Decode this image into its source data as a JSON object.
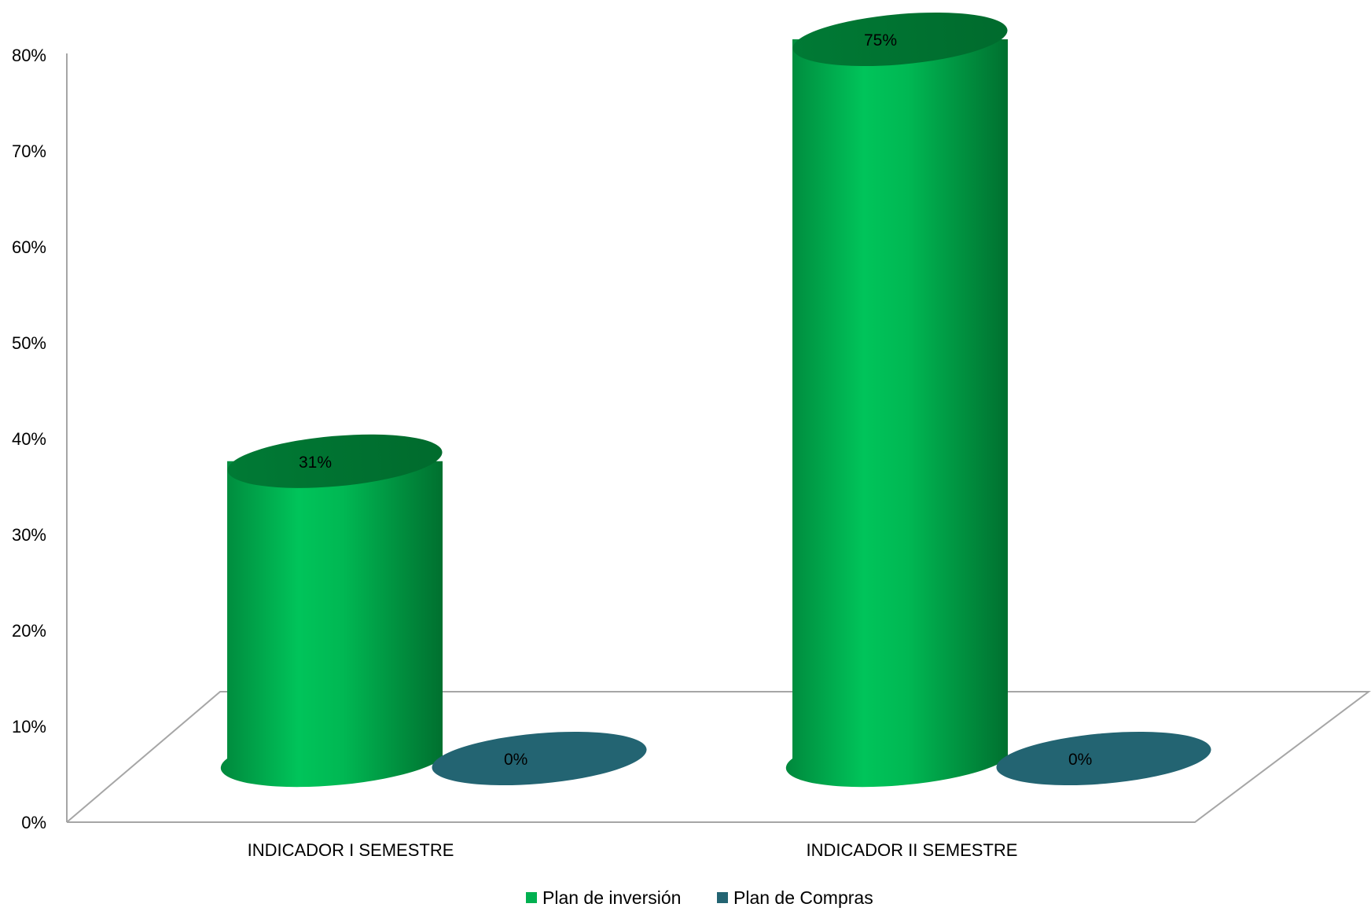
{
  "chart_data": {
    "type": "bar",
    "style": "3d-cylinder",
    "title": "",
    "xlabel": "",
    "ylabel": "",
    "ylim": [
      0,
      80
    ],
    "y_ticks": [
      "0%",
      "10%",
      "20%",
      "30%",
      "40%",
      "50%",
      "60%",
      "70%",
      "80%"
    ],
    "categories": [
      "INDICADOR I SEMESTRE",
      "INDICADOR II SEMESTRE"
    ],
    "series": [
      {
        "name": "Plan de inversión",
        "color": "#00b050",
        "values": [
          31,
          75
        ],
        "labels": [
          "31%",
          "75%"
        ]
      },
      {
        "name": "Plan de Compras",
        "color": "#236472",
        "values": [
          0,
          0
        ],
        "labels": [
          "0%",
          "0%"
        ]
      }
    ],
    "grid": false,
    "legend": "bottom"
  }
}
